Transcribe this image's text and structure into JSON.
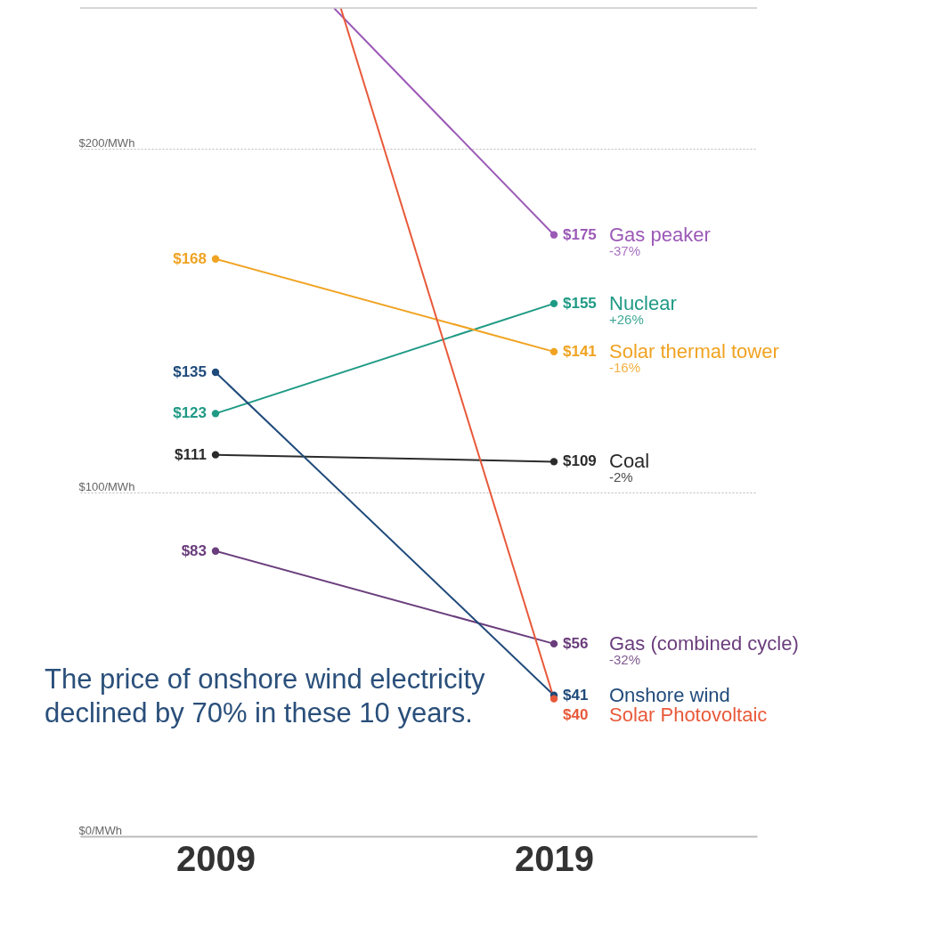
{
  "chart_data": {
    "type": "line",
    "x": [
      2009,
      2019
    ],
    "xlim": [
      2005,
      2025
    ],
    "xticks": [
      2009,
      2019
    ],
    "ylim": [
      0,
      241
    ],
    "yticks": [
      {
        "value": 0,
        "label": "$0/MWh"
      },
      {
        "value": 100,
        "label": "$100/MWh"
      },
      {
        "value": 200,
        "label": "$200/MWh"
      }
    ],
    "grid": "y",
    "marker": "circle",
    "legend": false,
    "series": [
      {
        "name": "Gas peaker",
        "color": "#9b59b6",
        "x": [
          2012.5,
          2019
        ],
        "values": [
          241,
          175
        ],
        "value_labels": [
          null,
          "$175"
        ]
      },
      {
        "name": "Nuclear",
        "color": "#1f9a85",
        "values": [
          123,
          155
        ],
        "value_labels": [
          "$123",
          "$155"
        ]
      },
      {
        "name": "Solar thermal tower",
        "color": "#f0a322",
        "values": [
          168,
          141
        ],
        "value_labels": [
          "$168",
          "$141"
        ]
      },
      {
        "name": "Coal",
        "color": "#2b2b2b",
        "values": [
          111,
          109
        ],
        "value_labels": [
          "$111",
          "$109"
        ]
      },
      {
        "name": "Gas (combined cycle)",
        "color": "#6a3d7c",
        "values": [
          83,
          56
        ],
        "value_labels": [
          "$83",
          "$56"
        ]
      },
      {
        "name": "Onshore wind",
        "color": "#1f4a7a",
        "values": [
          135,
          41
        ],
        "value_labels": [
          "$135",
          "$41"
        ]
      },
      {
        "name": "Solar Photovoltaic",
        "color": "#e8593a",
        "x": [
          2012.7,
          2019
        ],
        "values": [
          241,
          40
        ],
        "value_labels": [
          null,
          "$40"
        ]
      }
    ],
    "annotations": [
      "-37%",
      "+26%",
      "-16%",
      "-2%",
      "-32%",
      "The price of onshore wind electricity\ndeclined by 70% in these 10 years."
    ]
  }
}
